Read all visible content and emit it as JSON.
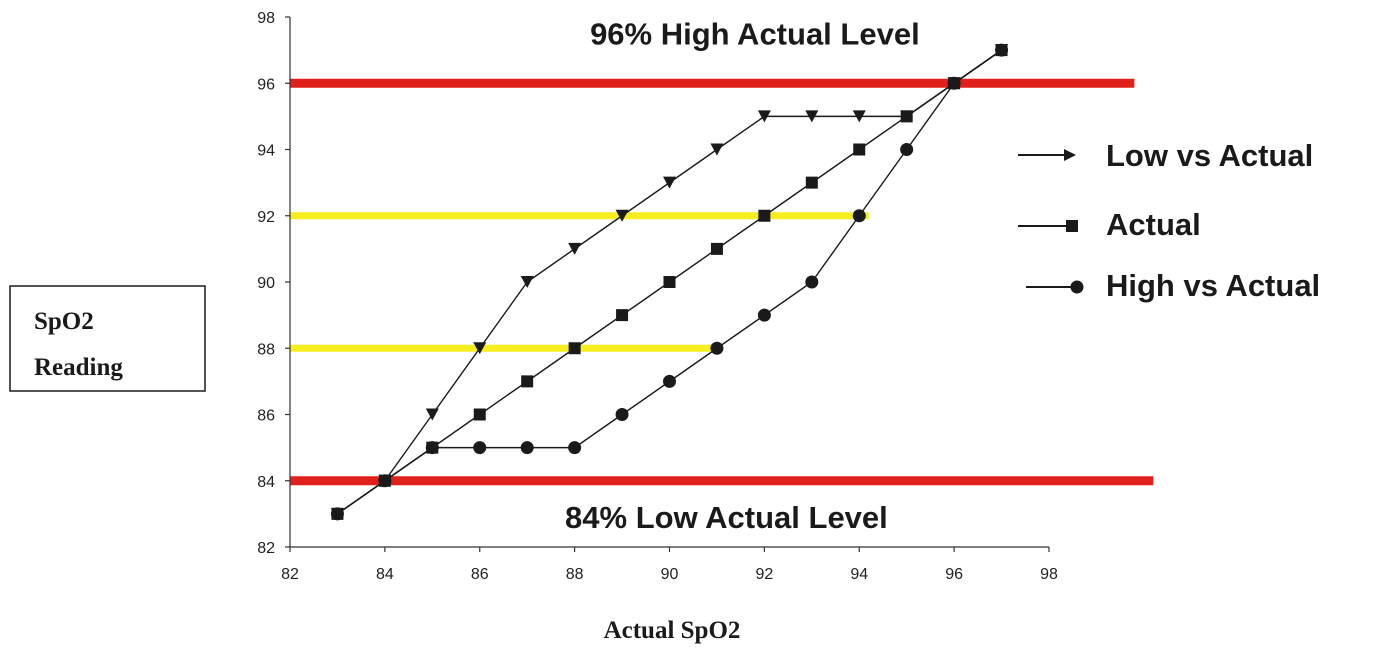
{
  "chart_data": {
    "type": "line",
    "xlabel": "Actual SpO2",
    "ylabel_lines": [
      "SpO2",
      "Reading"
    ],
    "xlim": [
      82,
      98
    ],
    "ylim": [
      82,
      98
    ],
    "x_ticks": [
      82,
      84,
      86,
      88,
      90,
      92,
      94,
      96,
      98
    ],
    "y_ticks": [
      82,
      84,
      86,
      88,
      90,
      92,
      94,
      96,
      98
    ],
    "grid": false,
    "legend_position": "right",
    "series": [
      {
        "name": "Low vs Actual",
        "marker": "triangle-down",
        "points": [
          [
            83,
            83
          ],
          [
            84,
            84
          ],
          [
            85,
            86
          ],
          [
            86,
            88
          ],
          [
            87,
            90
          ],
          [
            88,
            91
          ],
          [
            89,
            92
          ],
          [
            90,
            93
          ],
          [
            91,
            94
          ],
          [
            92,
            95
          ],
          [
            93,
            95
          ],
          [
            94,
            95
          ],
          [
            95,
            95
          ],
          [
            96,
            96
          ],
          [
            97,
            97
          ]
        ]
      },
      {
        "name": "Actual",
        "marker": "square",
        "points": [
          [
            83,
            83
          ],
          [
            84,
            84
          ],
          [
            85,
            85
          ],
          [
            86,
            86
          ],
          [
            87,
            87
          ],
          [
            88,
            88
          ],
          [
            89,
            89
          ],
          [
            90,
            90
          ],
          [
            91,
            91
          ],
          [
            92,
            92
          ],
          [
            93,
            93
          ],
          [
            94,
            94
          ],
          [
            95,
            95
          ],
          [
            96,
            96
          ],
          [
            97,
            97
          ]
        ]
      },
      {
        "name": "High vs Actual",
        "marker": "circle",
        "points": [
          [
            83,
            83
          ],
          [
            84,
            84
          ],
          [
            85,
            85
          ],
          [
            86,
            85
          ],
          [
            87,
            85
          ],
          [
            88,
            85
          ],
          [
            89,
            86
          ],
          [
            90,
            87
          ],
          [
            91,
            88
          ],
          [
            92,
            89
          ],
          [
            93,
            90
          ],
          [
            94,
            92
          ],
          [
            95,
            94
          ],
          [
            96,
            96
          ],
          [
            97,
            97
          ]
        ]
      }
    ],
    "reference_lines": [
      {
        "y": 96,
        "color": "#e0201b",
        "x_range": [
          82,
          99.8
        ]
      },
      {
        "y": 84,
        "color": "#e0201b",
        "x_range": [
          82,
          100.2
        ]
      },
      {
        "y": 92,
        "color": "#f7ee1f",
        "x_range": [
          82,
          94.2
        ]
      },
      {
        "y": 88,
        "color": "#f7ee1f",
        "x_range": [
          82,
          91.1
        ]
      }
    ],
    "annotations": [
      {
        "text": "96% High Actual Level",
        "x": 91.8,
        "y": 97.5
      },
      {
        "text": "84% Low Actual Level",
        "x": 91.2,
        "y": 82.9
      }
    ],
    "colors": {
      "series": "#1a1a1a",
      "red_line": "#e0201b",
      "yellow_line": "#f7ee1f"
    }
  }
}
